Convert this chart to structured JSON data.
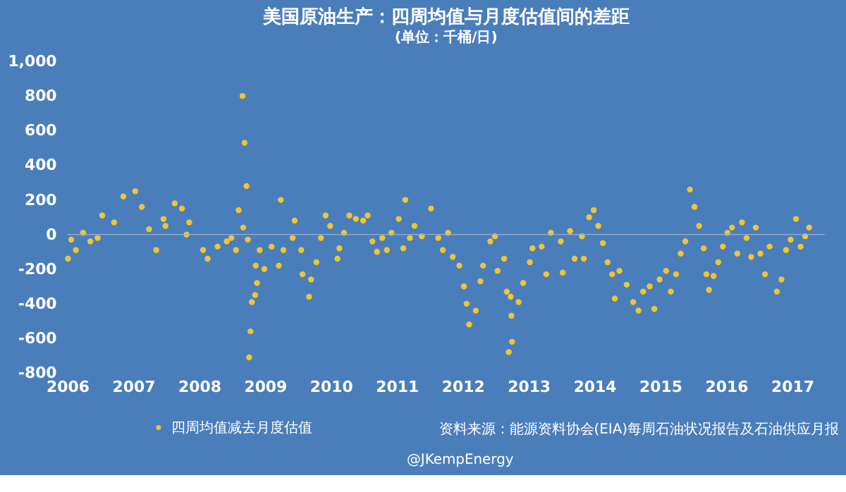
{
  "chart_data": {
    "type": "scatter",
    "title": "美国原油生产：四周均值与月度估值间的差距",
    "subtitle": "(单位：千桶/日)",
    "annotations": [
      "资料来源：能源资料协会(EIA)每周石油状况报告及石油供应月报",
      "@JKempEnergy"
    ],
    "x": [
      2006.01,
      2006.06,
      2006.13,
      2006.24,
      2006.35,
      2006.46,
      2006.53,
      2006.71,
      2006.85,
      2007.03,
      2007.13,
      2007.24,
      2007.35,
      2007.46,
      2007.49,
      2007.63,
      2007.74,
      2007.81,
      2007.85,
      2008.06,
      2008.13,
      2008.28,
      2008.42,
      2008.49,
      2008.56,
      2008.6,
      2008.66,
      2008.67,
      2008.69,
      2008.72,
      2008.74,
      2008.76,
      2008.78,
      2008.8,
      2008.85,
      2008.86,
      2008.88,
      2008.92,
      2008.99,
      2009.1,
      2009.21,
      2009.24,
      2009.28,
      2009.42,
      2009.45,
      2009.55,
      2009.57,
      2009.67,
      2009.7,
      2009.78,
      2009.85,
      2009.92,
      2009.99,
      2010.1,
      2010.13,
      2010.2,
      2010.28,
      2010.38,
      2010.49,
      2010.56,
      2010.63,
      2010.7,
      2010.78,
      2010.85,
      2010.92,
      2011.03,
      2011.1,
      2011.13,
      2011.2,
      2011.27,
      2011.38,
      2011.52,
      2011.63,
      2011.7,
      2011.78,
      2011.85,
      2011.95,
      2012.02,
      2012.06,
      2012.1,
      2012.2,
      2012.27,
      2012.31,
      2012.42,
      2012.49,
      2012.53,
      2012.63,
      2012.67,
      2012.7,
      2012.73,
      2012.74,
      2012.75,
      2012.85,
      2012.92,
      2013.02,
      2013.06,
      2013.2,
      2013.27,
      2013.34,
      2013.49,
      2013.52,
      2013.63,
      2013.7,
      2013.81,
      2013.84,
      2013.92,
      2013.99,
      2014.06,
      2014.13,
      2014.2,
      2014.27,
      2014.31,
      2014.38,
      2014.49,
      2014.59,
      2014.67,
      2014.74,
      2014.84,
      2014.91,
      2014.99,
      2015.09,
      2015.16,
      2015.24,
      2015.31,
      2015.38,
      2015.45,
      2015.52,
      2015.59,
      2015.66,
      2015.7,
      2015.74,
      2015.81,
      2015.88,
      2015.95,
      2016.02,
      2016.09,
      2016.17,
      2016.24,
      2016.31,
      2016.38,
      2016.45,
      2016.52,
      2016.59,
      2016.66,
      2016.77,
      2016.84,
      2016.91,
      2016.98,
      2017.06,
      2017.13,
      2017.2,
      2017.26
    ],
    "series": [
      {
        "name": "四周均值减去月度估值",
        "color": "#f2c530",
        "values": [
          -140,
          -30,
          -90,
          10,
          -40,
          -20,
          110,
          70,
          220,
          250,
          160,
          30,
          -90,
          90,
          50,
          180,
          150,
          0,
          70,
          -90,
          -140,
          -70,
          -40,
          -20,
          -90,
          140,
          800,
          40,
          530,
          280,
          -30,
          -710,
          -560,
          -390,
          -350,
          -180,
          -280,
          -90,
          -200,
          -70,
          -180,
          200,
          -90,
          -20,
          80,
          -90,
          -230,
          -360,
          -260,
          -160,
          -20,
          110,
          50,
          -140,
          -80,
          10,
          110,
          90,
          80,
          110,
          -40,
          -100,
          -20,
          -90,
          10,
          90,
          -80,
          200,
          -20,
          50,
          -10,
          150,
          -20,
          -90,
          10,
          -130,
          -180,
          -300,
          -400,
          -520,
          -440,
          -270,
          -180,
          -40,
          -10,
          -210,
          -140,
          -330,
          -680,
          -360,
          -470,
          -620,
          -390,
          -280,
          -160,
          -80,
          -70,
          -230,
          10,
          -40,
          -220,
          20,
          -140,
          -10,
          -140,
          100,
          140,
          50,
          -50,
          -160,
          -230,
          -370,
          -210,
          -290,
          -390,
          -440,
          -330,
          -300,
          -430,
          -260,
          -210,
          -330,
          -230,
          -110,
          -40,
          260,
          160,
          50,
          -80,
          -230,
          -320,
          -240,
          -160,
          -70,
          10,
          40,
          -110,
          70,
          -20,
          -130,
          40,
          -110,
          -230,
          -70,
          -330,
          -260,
          -90,
          -30,
          90,
          -70,
          -10,
          40
        ]
      }
    ],
    "xlim": [
      2006,
      2017.5
    ],
    "xticks": [
      2006,
      2007,
      2008,
      2009,
      2010,
      2011,
      2012,
      2013,
      2014,
      2015,
      2016,
      2017
    ],
    "ylim": [
      -800,
      1000
    ],
    "yticks": [
      -800,
      -600,
      -400,
      -200,
      0,
      200,
      400,
      600,
      800,
      {
        "value": 1000,
        "label": "1,000"
      }
    ],
    "ref_lines": [
      {
        "axis": "y",
        "value": 0,
        "color": "#9aaec8"
      }
    ],
    "grid": false,
    "legend": "bottom left",
    "marker": "circle"
  }
}
